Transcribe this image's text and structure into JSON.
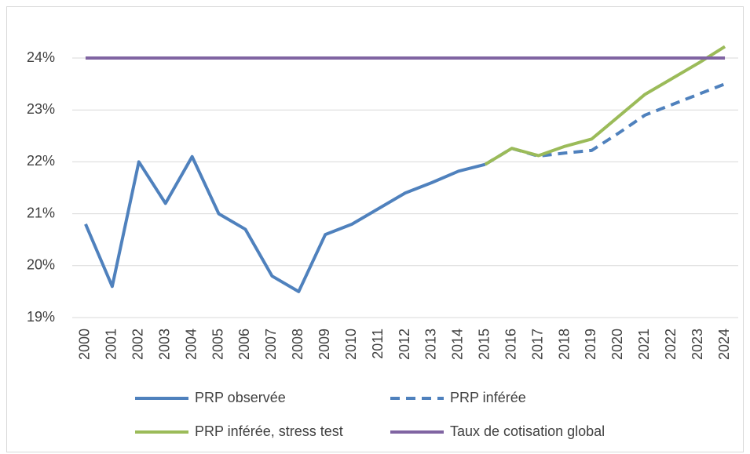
{
  "chart_data": {
    "type": "line",
    "categories": [
      "2000",
      "2001",
      "2002",
      "2003",
      "2004",
      "2005",
      "2006",
      "2007",
      "2008",
      "2009",
      "2010",
      "2011",
      "2012",
      "2013",
      "2014",
      "2015",
      "2016",
      "2017",
      "2018",
      "2019",
      "2020",
      "2021",
      "2022",
      "2023",
      "2024"
    ],
    "series": [
      {
        "name": "PRP observée",
        "color": "#4f81bd",
        "dashed": false,
        "values": [
          20.8,
          19.6,
          22.0,
          21.2,
          22.1,
          21.0,
          20.7,
          19.8,
          19.5,
          20.6,
          20.8,
          21.1,
          21.4,
          21.6,
          21.82,
          21.95,
          null,
          null,
          null,
          null,
          null,
          null,
          null,
          null,
          null
        ]
      },
      {
        "name": "PRP inférée",
        "color": "#4f81bd",
        "dashed": true,
        "values": [
          null,
          null,
          null,
          null,
          null,
          null,
          null,
          null,
          null,
          null,
          null,
          null,
          null,
          null,
          null,
          21.95,
          22.26,
          22.11,
          22.17,
          22.22,
          22.55,
          22.9,
          23.1,
          23.3,
          23.5
        ]
      },
      {
        "name": "PRP inférée, stress test",
        "color": "#9bbb59",
        "dashed": false,
        "values": [
          null,
          null,
          null,
          null,
          null,
          null,
          null,
          null,
          null,
          null,
          null,
          null,
          null,
          null,
          null,
          21.95,
          22.26,
          22.12,
          22.3,
          22.44,
          22.87,
          23.3,
          23.6,
          23.9,
          24.22
        ]
      },
      {
        "name": "Taux de cotisation global",
        "color": "#8064a2",
        "dashed": false,
        "values": [
          24,
          24,
          24,
          24,
          24,
          24,
          24,
          24,
          24,
          24,
          24,
          24,
          24,
          24,
          24,
          24,
          24,
          24,
          24,
          24,
          24,
          24,
          24,
          24,
          24
        ]
      }
    ],
    "ylim": [
      19,
      24.5
    ],
    "yticks": [
      {
        "value": 19,
        "label": "19%"
      },
      {
        "value": 20,
        "label": "20%"
      },
      {
        "value": 21,
        "label": "21%"
      },
      {
        "value": 22,
        "label": "22%"
      },
      {
        "value": 23,
        "label": "23%"
      },
      {
        "value": 24,
        "label": "24%"
      }
    ],
    "grid": true,
    "legend": "bottom"
  }
}
